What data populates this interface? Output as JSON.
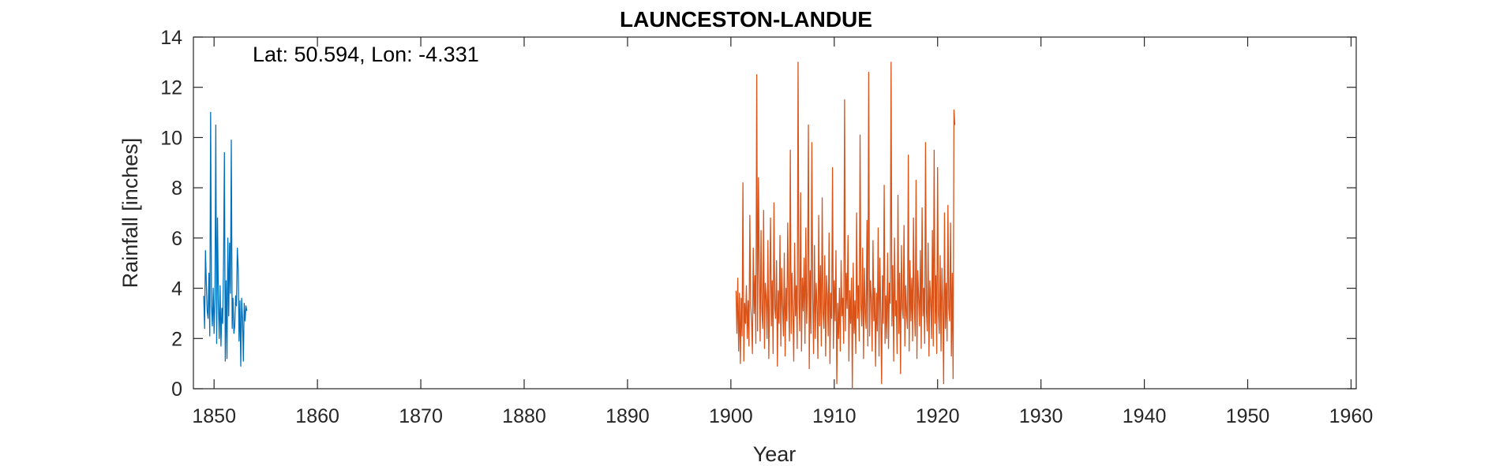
{
  "chart_data": {
    "type": "line",
    "title": "LAUNCESTON-LANDUE",
    "xlabel": "Year",
    "ylabel": "Rainfall [inches]",
    "annotation": "Lat: 50.594, Lon: -4.331",
    "xlim": [
      1848,
      1960.5
    ],
    "ylim": [
      0,
      14
    ],
    "xticks": [
      1850,
      1860,
      1870,
      1880,
      1890,
      1900,
      1910,
      1920,
      1930,
      1940,
      1950,
      1960
    ],
    "yticks": [
      0,
      2,
      4,
      6,
      8,
      10,
      12,
      14
    ],
    "grid": false,
    "colors": {
      "series_1": "#0072BD",
      "series_2": "#D95319",
      "axis": "#262626"
    },
    "series": [
      {
        "x_start": 1849.0,
        "x_step": 0.08333,
        "values": [
          3.7,
          2.4,
          5.5,
          4.2,
          3.1,
          2.8,
          4.6,
          2.1,
          11.0,
          3.3,
          2.5,
          4.0,
          2.2,
          3.6,
          10.5,
          1.8,
          6.8,
          3.4,
          2.0,
          4.1,
          1.7,
          3.2,
          2.6,
          5.0,
          9.4,
          1.1,
          4.3,
          1.2,
          6.0,
          2.9,
          5.8,
          3.8,
          9.9,
          2.4,
          3.6,
          2.2,
          2.5,
          3.7,
          3.3,
          5.6,
          4.8,
          1.9,
          3.5,
          0.9,
          3.6,
          2.8,
          1.1,
          3.4,
          2.7,
          3.3,
          3.1
        ]
      },
      {
        "x_start": 1900.5,
        "x_step": 0.08333,
        "values": [
          3.9,
          2.2,
          4.4,
          1.5,
          3.8,
          1.0,
          3.6,
          2.1,
          8.2,
          1.1,
          3.4,
          2.6,
          4.1,
          2.0,
          3.5,
          1.7,
          6.9,
          3.3,
          2.7,
          1.4,
          5.6,
          3.0,
          4.5,
          1.8,
          12.5,
          2.3,
          8.4,
          4.7,
          1.9,
          6.3,
          3.1,
          2.4,
          7.1,
          1.6,
          4.2,
          3.6,
          2.0,
          5.9,
          1.2,
          3.7,
          6.8,
          2.5,
          4.3,
          1.4,
          7.4,
          3.2,
          2.8,
          5.1,
          0.9,
          3.9,
          2.6,
          6.1,
          1.7,
          4.8,
          3.3,
          2.1,
          5.4,
          1.3,
          4.0,
          2.7,
          6.6,
          3.4,
          1.9,
          9.5,
          2.2,
          4.6,
          3.0,
          1.1,
          5.8,
          2.9,
          4.1,
          1.6,
          13.0,
          3.5,
          2.3,
          7.8,
          1.5,
          4.4,
          3.1,
          5.2,
          1.8,
          6.4,
          2.6,
          3.9,
          10.5,
          0.8,
          4.7,
          2.2,
          9.8,
          3.6,
          1.4,
          5.7,
          2.0,
          4.2,
          3.3,
          1.2,
          6.9,
          2.5,
          4.9,
          1.7,
          7.6,
          3.0,
          2.4,
          5.3,
          1.3,
          4.5,
          3.7,
          2.1,
          6.2,
          1.0,
          3.8,
          2.8,
          8.8,
          1.6,
          4.3,
          2.7,
          5.5,
          0.2,
          3.4,
          2.0,
          4.0,
          1.5,
          5.1,
          2.9,
          3.6,
          1.8,
          11.5,
          2.3,
          4.6,
          3.2,
          6.1,
          1.1,
          3.9,
          2.6,
          4.4,
          0.0,
          5.0,
          2.2,
          3.5,
          1.4,
          7.0,
          2.8,
          4.1,
          1.9,
          10.1,
          3.3,
          2.5,
          5.6,
          1.2,
          4.8,
          3.0,
          2.4,
          6.7,
          1.7,
          12.6,
          2.1,
          4.3,
          3.6,
          1.5,
          5.9,
          2.7,
          4.0,
          0.9,
          3.8,
          2.3,
          6.4,
          1.3,
          5.2,
          3.1,
          0.2,
          4.5,
          2.6,
          8.1,
          1.8,
          3.7,
          2.0,
          5.4,
          1.6,
          4.2,
          3.4,
          13.0,
          2.5,
          4.9,
          1.1,
          6.0,
          2.9,
          3.5,
          1.4,
          7.7,
          2.2,
          4.6,
          0.6,
          5.7,
          3.2,
          2.8,
          6.5,
          1.7,
          4.1,
          3.0,
          2.4,
          9.3,
          1.5,
          5.1,
          2.7,
          4.4,
          1.9,
          6.8,
          3.3,
          2.1,
          8.3,
          1.2,
          4.7,
          3.6,
          2.5,
          5.5,
          1.6,
          7.2,
          2.9,
          4.0,
          1.8,
          9.8,
          3.1,
          2.3,
          5.8,
          1.3,
          4.3,
          3.5,
          2.0,
          6.3,
          1.7,
          9.5,
          2.6,
          4.5,
          1.4,
          8.8,
          3.0,
          2.2,
          5.3,
          1.5,
          4.8,
          3.4,
          0.2,
          7.0,
          2.4,
          4.2,
          1.9,
          7.3,
          3.2,
          2.7,
          6.6,
          1.3,
          4.6,
          0.4,
          11.1,
          10.5
        ]
      }
    ]
  }
}
